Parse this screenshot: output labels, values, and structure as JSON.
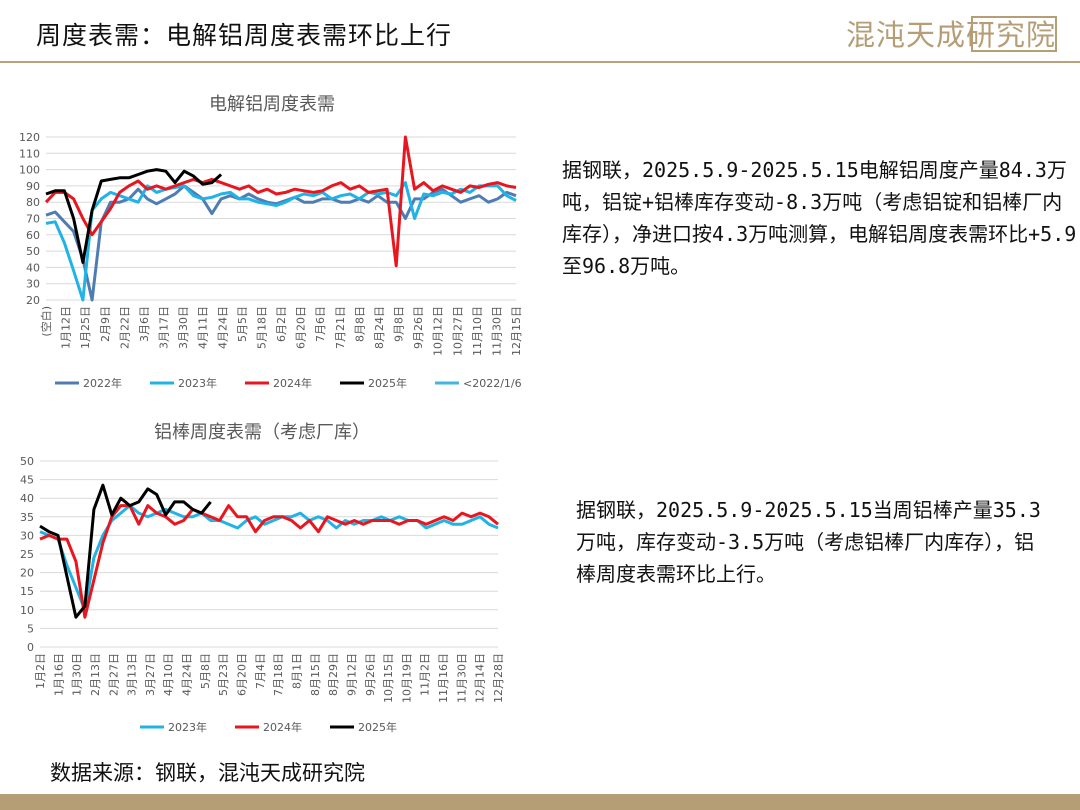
{
  "header": {
    "title": "周度表需：电解铝周度表需环比上行",
    "logo_text": "混沌天成研究院"
  },
  "notes": {
    "note1": "据钢联，2025.5.9-2025.5.15电解铝周度产量84.3万吨，铝锭+铝棒库存变动-8.3万吨（考虑铝锭和铝棒厂内库存），净进口按4.3万吨测算，电解铝周度表需环比+5.9至96.8万吨。",
    "note2": "据钢联，2025.5.9-2025.5.15当周铝棒产量35.3万吨，库存变动-3.5万吨（考虑铝棒厂内库存），铝棒周度表需环比上行。"
  },
  "source": "数据来源：钢联，混沌天成研究院",
  "colors": {
    "accent": "#b9a27d",
    "y2022": "#4f7db3",
    "y2023": "#1fb3e6",
    "y2024": "#e8161e",
    "y2025": "#000000",
    "pre2022": "#43b6e0"
  },
  "chart_data": [
    {
      "type": "line",
      "title": "电解铝周度表需",
      "ylim": [
        20,
        120
      ],
      "yticks": [
        20,
        30,
        40,
        50,
        60,
        70,
        80,
        90,
        100,
        110,
        120
      ],
      "x_labels": [
        "(空白)",
        "1月12日",
        "1月25日",
        "2月9日",
        "2月22日",
        "3月6日",
        "3月17日",
        "3月30日",
        "4月11日",
        "4月24日",
        "5月5日",
        "5月18日",
        "6月2日",
        "6月20日",
        "7月6日",
        "7月21日",
        "8月8日",
        "8月24日",
        "9月8日",
        "9月26日",
        "10月12日",
        "10月27日",
        "11月10日",
        "11月30日",
        "12月15日"
      ],
      "x_count": 52,
      "legend": [
        "2022年",
        "2023年",
        "2024年",
        "2025年",
        "<2022/1/6"
      ],
      "series": [
        {
          "name": "2022年",
          "color": "#4f7db3",
          "values": [
            72,
            74,
            68,
            62,
            45,
            20,
            68,
            80,
            80,
            82,
            88,
            82,
            79,
            82,
            85,
            90,
            86,
            82,
            73,
            82,
            84,
            82,
            85,
            82,
            80,
            79,
            81,
            83,
            80,
            80,
            82,
            82,
            80,
            80,
            82,
            80,
            84,
            80,
            80,
            70,
            82,
            82,
            86,
            88,
            84,
            80,
            82,
            84,
            80,
            82,
            86,
            84
          ]
        },
        {
          "name": "2023年",
          "color": "#1fb3e6",
          "values": [
            67,
            68,
            55,
            38,
            20,
            75,
            82,
            86,
            84,
            82,
            80,
            90,
            86,
            88,
            89,
            90,
            84,
            82,
            83,
            85,
            86,
            82,
            82,
            80,
            79,
            78,
            80,
            83,
            85,
            84,
            86,
            82,
            84,
            85,
            82,
            86,
            85,
            86,
            84,
            92,
            70,
            85,
            84,
            86,
            85,
            88,
            86,
            90,
            90,
            90,
            84,
            81
          ]
        },
        {
          "name": "2024年",
          "color": "#e8161e",
          "values": [
            80,
            86,
            86,
            82,
            70,
            60,
            68,
            76,
            86,
            90,
            93,
            88,
            90,
            88,
            90,
            92,
            94,
            92,
            94,
            92,
            90,
            88,
            90,
            86,
            88,
            85,
            86,
            88,
            87,
            86,
            87,
            90,
            92,
            88,
            90,
            86,
            87,
            88,
            41,
            120,
            88,
            92,
            87,
            90,
            88,
            86,
            90,
            89,
            91,
            92,
            90,
            89
          ]
        },
        {
          "name": "2025年",
          "color": "#000000",
          "values": [
            85,
            87,
            87,
            70,
            43,
            75,
            93,
            94,
            95,
            95,
            97,
            99,
            100,
            99,
            92,
            99,
            96,
            91,
            92,
            97
          ]
        },
        {
          "name": "<2022/1/6",
          "color": "#43b6e0",
          "values": []
        }
      ]
    },
    {
      "type": "line",
      "title": "铝棒周度表需（考虑厂库）",
      "ylim": [
        0,
        50
      ],
      "yticks": [
        0,
        5,
        10,
        15,
        20,
        25,
        30,
        35,
        40,
        45,
        50
      ],
      "x_labels": [
        "1月2日",
        "1月16日",
        "1月30日",
        "2月13日",
        "2月27日",
        "3月13日",
        "3月27日",
        "4月10日",
        "4月24日",
        "5月8日",
        "5月23日",
        "6月20日",
        "7月4日",
        "7月18日",
        "8月1日",
        "8月15日",
        "8月29日",
        "9月12日",
        "9月26日",
        "10月15日",
        "10月19日",
        "11月2日",
        "11月16日",
        "11月30日",
        "12月14日",
        "12月28日"
      ],
      "x_count": 52,
      "legend": [
        "2023年",
        "2024年",
        "2025年"
      ],
      "series": [
        {
          "name": "2023年",
          "color": "#1fb3e6",
          "values": [
            31,
            30,
            29,
            22,
            16,
            10,
            24,
            30,
            34,
            36,
            38,
            36,
            35,
            36,
            37,
            36,
            35,
            35,
            36,
            34,
            34,
            33,
            32,
            34,
            35,
            33,
            34,
            35,
            35,
            36,
            34,
            35,
            34,
            32,
            34,
            33,
            34,
            34,
            35,
            34,
            35,
            34,
            34,
            32,
            33,
            34,
            33,
            33,
            34,
            35,
            33,
            32
          ]
        },
        {
          "name": "2024年",
          "color": "#e8161e",
          "values": [
            29,
            30,
            29,
            29,
            23,
            8,
            18,
            28,
            35,
            38,
            38,
            33,
            38,
            36,
            35,
            33,
            34,
            37,
            36,
            35,
            34,
            38,
            35,
            35,
            31,
            34,
            35,
            35,
            34,
            32,
            34,
            31,
            35,
            34,
            33,
            34,
            33,
            34,
            34,
            34,
            33,
            34,
            34,
            33,
            34,
            35,
            34,
            36,
            35,
            36,
            35,
            33
          ]
        },
        {
          "name": "2025年",
          "color": "#000000",
          "values": [
            32.5,
            31,
            30,
            19,
            8,
            11,
            37,
            43.5,
            35.5,
            40,
            38,
            39,
            42.5,
            41,
            35.5,
            39,
            39,
            37,
            36,
            39
          ]
        }
      ]
    }
  ]
}
